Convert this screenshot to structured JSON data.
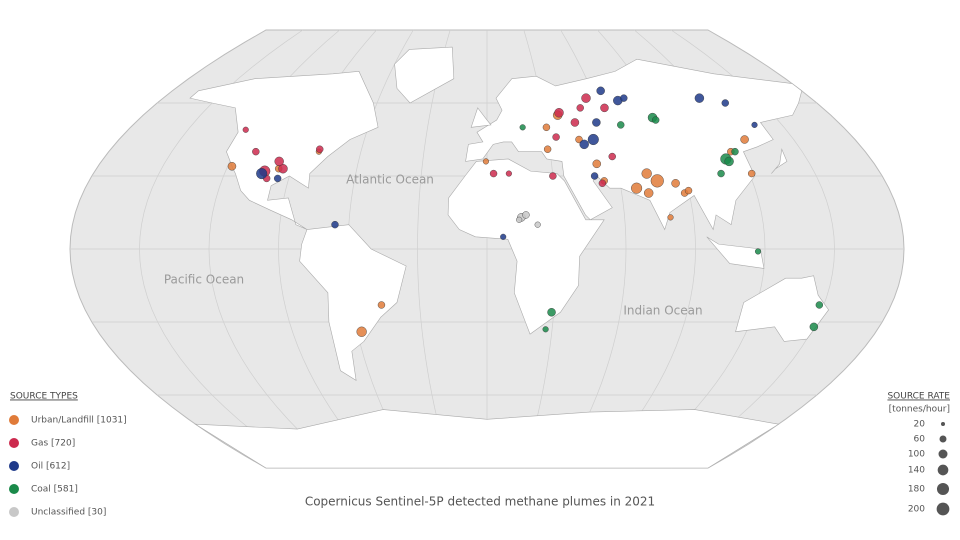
{
  "map": {
    "caption": "Copernicus Sentinel-5P detected methane plumes in 2021",
    "oceans": [
      "Atlantic Ocean",
      "Pacific Ocean",
      "Indian Ocean"
    ],
    "legend": {
      "title": "SOURCE TYPES",
      "types": [
        {
          "label": "Urban/Landfill [1031]",
          "color": "#e07b39",
          "plumes": [
            [
              -118,
              34,
              80
            ],
            [
              -96,
              33,
              60
            ],
            [
              -80,
              40,
              40
            ],
            [
              -58,
              -34,
              120
            ],
            [
              -47,
              -23,
              60
            ],
            [
              37,
              55,
              100
            ],
            [
              30,
              50,
              60
            ],
            [
              45,
              45,
              60
            ],
            [
              67,
              25,
              140
            ],
            [
              73,
              31,
              120
            ],
            [
              77,
              28,
              200
            ],
            [
              72,
              23,
              100
            ],
            [
              85,
              27,
              80
            ],
            [
              88,
              23,
              60
            ],
            [
              80,
              13,
              40
            ],
            [
              90,
              24,
              60
            ],
            [
              116,
              40,
              60
            ],
            [
              121,
              31,
              60
            ],
            [
              126,
              45,
              80
            ],
            [
              51,
              35,
              80
            ],
            [
              -0.5,
              36,
              40
            ],
            [
              29,
              41,
              60
            ],
            [
              53,
              28,
              60
            ]
          ]
        },
        {
          "label": "Gas [720]",
          "color": "#cc2a4e",
          "plumes": [
            [
              -102,
              32,
              140
            ],
            [
              -94,
              33,
              100
            ],
            [
              -110,
              40,
              60
            ],
            [
              -97,
              36,
              100
            ],
            [
              -80,
              41,
              60
            ],
            [
              -121,
              49,
              40
            ],
            [
              38,
              56,
              100
            ],
            [
              45,
              52,
              80
            ],
            [
              55,
              62,
              100
            ],
            [
              63,
              58,
              80
            ],
            [
              50,
              58,
              60
            ],
            [
              34,
              46,
              60
            ],
            [
              59,
              38,
              60
            ],
            [
              52,
              27,
              60
            ],
            [
              3,
              31,
              60
            ],
            [
              10,
              31,
              40
            ],
            [
              30,
              30,
              60
            ],
            [
              -100,
              29,
              60
            ]
          ]
        },
        {
          "label": "Oil [612]",
          "color": "#1f3a8a",
          "plumes": [
            [
              -103,
              31,
              140
            ],
            [
              -95,
              29,
              60
            ],
            [
              -66,
              10,
              60
            ],
            [
              49,
              30,
              60
            ],
            [
              47,
              43,
              100
            ],
            [
              52,
              45,
              140
            ],
            [
              56,
              52,
              80
            ],
            [
              72,
              61,
              100
            ],
            [
              65,
              65,
              80
            ],
            [
              76,
              62,
              60
            ],
            [
              118,
              62,
              100
            ],
            [
              136,
              51,
              40
            ],
            [
              130,
              60,
              60
            ],
            [
              7,
              5,
              40
            ]
          ]
        },
        {
          "label": "Coal [581]",
          "color": "#1a8a4a",
          "plumes": [
            [
              112,
              37,
              140
            ],
            [
              113,
              36,
              100
            ],
            [
              118,
              40,
              60
            ],
            [
              107,
              31,
              60
            ],
            [
              86,
              54,
              100
            ],
            [
              68,
              51,
              60
            ],
            [
              29,
              -26,
              80
            ],
            [
              27,
              -33,
              40
            ],
            [
              150,
              -32,
              80
            ],
            [
              148,
              -23,
              60
            ],
            [
              18,
              50,
              40
            ],
            [
              117,
              -1,
              40
            ],
            [
              87,
              53,
              60
            ]
          ]
        },
        {
          "label": "Unclassified [30]",
          "color": "#c8c8c8",
          "plumes": [
            [
              15,
              13,
              80
            ],
            [
              17,
              14,
              60
            ],
            [
              22,
              10,
              40
            ],
            [
              14,
              12,
              40
            ]
          ]
        }
      ]
    },
    "size_legend": {
      "title": "SOURCE RATE",
      "unit": "[tonnes/hour]",
      "values": [
        20,
        60,
        100,
        140,
        180,
        200
      ]
    }
  }
}
